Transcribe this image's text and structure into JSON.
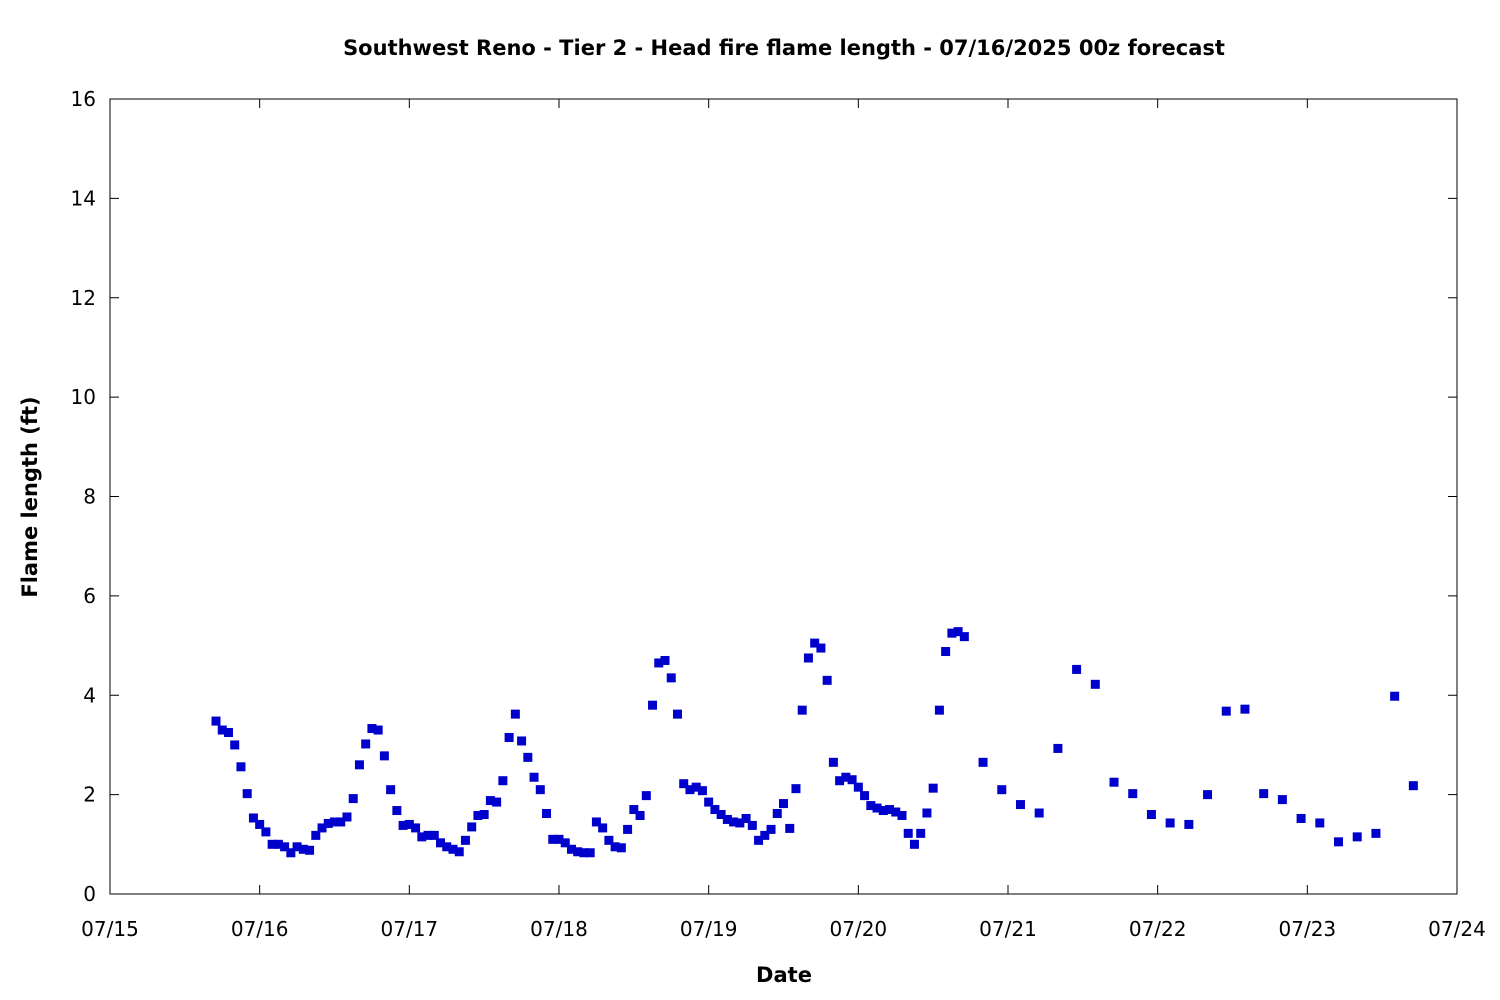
{
  "chart_data": {
    "type": "scatter",
    "title": "Southwest Reno - Tier 2 - Head fire flame length - 07/16/2025 00z forecast",
    "xlabel": "Date",
    "ylabel": "Flame length (ft)",
    "x_range": [
      "2025-07-15 00:00",
      "2025-07-24 00:00"
    ],
    "ylim": [
      0,
      16
    ],
    "y_ticks": [
      0,
      2,
      4,
      6,
      8,
      10,
      12,
      14,
      16
    ],
    "x_ticks": [
      "07/15",
      "07/16",
      "07/17",
      "07/18",
      "07/19",
      "07/20",
      "07/21",
      "07/22",
      "07/23",
      "07/24"
    ],
    "grid": false,
    "marker_color": "#0000cc",
    "series": [
      {
        "x": [
          "2025-07-15 17:00",
          "2025-07-15 18:00",
          "2025-07-15 19:00",
          "2025-07-15 20:00",
          "2025-07-15 21:00",
          "2025-07-15 22:00",
          "2025-07-15 23:00",
          "2025-07-16 00:00",
          "2025-07-16 01:00",
          "2025-07-16 02:00",
          "2025-07-16 03:00",
          "2025-07-16 04:00",
          "2025-07-16 05:00",
          "2025-07-16 06:00",
          "2025-07-16 07:00",
          "2025-07-16 08:00",
          "2025-07-16 09:00",
          "2025-07-16 10:00",
          "2025-07-16 11:00",
          "2025-07-16 12:00",
          "2025-07-16 13:00",
          "2025-07-16 14:00",
          "2025-07-16 15:00",
          "2025-07-16 16:00",
          "2025-07-16 17:00",
          "2025-07-16 18:00",
          "2025-07-16 19:00",
          "2025-07-16 20:00",
          "2025-07-16 21:00",
          "2025-07-16 22:00",
          "2025-07-16 23:00",
          "2025-07-17 00:00",
          "2025-07-17 01:00",
          "2025-07-17 02:00",
          "2025-07-17 03:00",
          "2025-07-17 04:00",
          "2025-07-17 05:00",
          "2025-07-17 06:00",
          "2025-07-17 07:00",
          "2025-07-17 08:00",
          "2025-07-17 09:00",
          "2025-07-17 10:00",
          "2025-07-17 11:00",
          "2025-07-17 12:00",
          "2025-07-17 13:00",
          "2025-07-17 14:00",
          "2025-07-17 15:00",
          "2025-07-17 16:00",
          "2025-07-17 17:00",
          "2025-07-17 18:00",
          "2025-07-17 19:00",
          "2025-07-17 20:00",
          "2025-07-17 21:00",
          "2025-07-17 22:00",
          "2025-07-17 23:00",
          "2025-07-18 00:00",
          "2025-07-18 01:00",
          "2025-07-18 02:00",
          "2025-07-18 03:00",
          "2025-07-18 04:00",
          "2025-07-18 05:00",
          "2025-07-18 06:00",
          "2025-07-18 07:00",
          "2025-07-18 08:00",
          "2025-07-18 09:00",
          "2025-07-18 10:00",
          "2025-07-18 11:00",
          "2025-07-18 12:00",
          "2025-07-18 13:00",
          "2025-07-18 14:00",
          "2025-07-18 15:00",
          "2025-07-18 16:00",
          "2025-07-18 17:00",
          "2025-07-18 18:00",
          "2025-07-18 19:00",
          "2025-07-18 20:00",
          "2025-07-18 21:00",
          "2025-07-18 22:00",
          "2025-07-18 23:00",
          "2025-07-19 00:00",
          "2025-07-19 01:00",
          "2025-07-19 02:00",
          "2025-07-19 03:00",
          "2025-07-19 04:00",
          "2025-07-19 05:00",
          "2025-07-19 06:00",
          "2025-07-19 07:00",
          "2025-07-19 08:00",
          "2025-07-19 09:00",
          "2025-07-19 10:00",
          "2025-07-19 11:00",
          "2025-07-19 12:00",
          "2025-07-19 13:00",
          "2025-07-19 14:00",
          "2025-07-19 15:00",
          "2025-07-19 16:00",
          "2025-07-19 17:00",
          "2025-07-19 18:00",
          "2025-07-19 19:00",
          "2025-07-19 20:00",
          "2025-07-19 21:00",
          "2025-07-19 22:00",
          "2025-07-19 23:00",
          "2025-07-20 00:00",
          "2025-07-20 01:00",
          "2025-07-20 02:00",
          "2025-07-20 03:00",
          "2025-07-20 04:00",
          "2025-07-20 05:00",
          "2025-07-20 06:00",
          "2025-07-20 07:00",
          "2025-07-20 08:00",
          "2025-07-20 09:00",
          "2025-07-20 10:00",
          "2025-07-20 11:00",
          "2025-07-20 12:00",
          "2025-07-20 13:00",
          "2025-07-20 14:00",
          "2025-07-20 15:00",
          "2025-07-20 16:00",
          "2025-07-20 17:00",
          "2025-07-20 20:00",
          "2025-07-20 23:00",
          "2025-07-21 02:00",
          "2025-07-21 05:00",
          "2025-07-21 08:00",
          "2025-07-21 11:00",
          "2025-07-21 14:00",
          "2025-07-21 17:00",
          "2025-07-21 20:00",
          "2025-07-21 23:00",
          "2025-07-22 02:00",
          "2025-07-22 05:00",
          "2025-07-22 08:00",
          "2025-07-22 11:00",
          "2025-07-22 14:00",
          "2025-07-22 17:00",
          "2025-07-22 20:00",
          "2025-07-22 23:00",
          "2025-07-23 02:00",
          "2025-07-23 05:00",
          "2025-07-23 08:00",
          "2025-07-23 11:00",
          "2025-07-23 14:00",
          "2025-07-23 17:00"
        ],
        "values": [
          3.48,
          3.3,
          3.25,
          3.0,
          2.56,
          2.02,
          1.53,
          1.4,
          1.25,
          1.0,
          1.0,
          0.95,
          0.83,
          0.95,
          0.9,
          0.88,
          1.18,
          1.33,
          1.42,
          1.45,
          1.45,
          1.55,
          1.92,
          2.6,
          3.02,
          3.33,
          3.3,
          2.78,
          2.1,
          1.68,
          1.38,
          1.4,
          1.33,
          1.15,
          1.18,
          1.18,
          1.03,
          0.95,
          0.9,
          0.85,
          1.08,
          1.35,
          1.58,
          1.6,
          1.88,
          1.85,
          2.28,
          3.15,
          3.62,
          3.08,
          2.75,
          2.35,
          2.1,
          1.62,
          1.1,
          1.1,
          1.03,
          0.9,
          0.85,
          0.83,
          0.83,
          1.45,
          1.33,
          1.08,
          0.95,
          0.93,
          1.3,
          1.7,
          1.58,
          1.98,
          3.8,
          4.65,
          4.7,
          4.35,
          3.62,
          2.22,
          2.1,
          2.15,
          2.08,
          1.85,
          1.7,
          1.6,
          1.5,
          1.45,
          1.43,
          1.52,
          1.38,
          1.08,
          1.18,
          1.3,
          1.62,
          1.82,
          1.32,
          2.12,
          3.7,
          4.75,
          5.05,
          4.95,
          4.3,
          2.65,
          2.28,
          2.35,
          2.3,
          2.15,
          1.98,
          1.78,
          1.73,
          1.68,
          1.7,
          1.65,
          1.58,
          1.22,
          1.0,
          1.22,
          1.63,
          2.13,
          3.7,
          4.88,
          5.25,
          5.28,
          5.18,
          2.65,
          2.1,
          1.8,
          1.63,
          2.93,
          4.52,
          4.22,
          2.25,
          2.02,
          1.6,
          1.43,
          1.4,
          2.0,
          3.68,
          3.72,
          2.02,
          1.9,
          1.52,
          1.43,
          1.05,
          1.15,
          1.22,
          3.98,
          2.18
        ]
      }
    ]
  }
}
